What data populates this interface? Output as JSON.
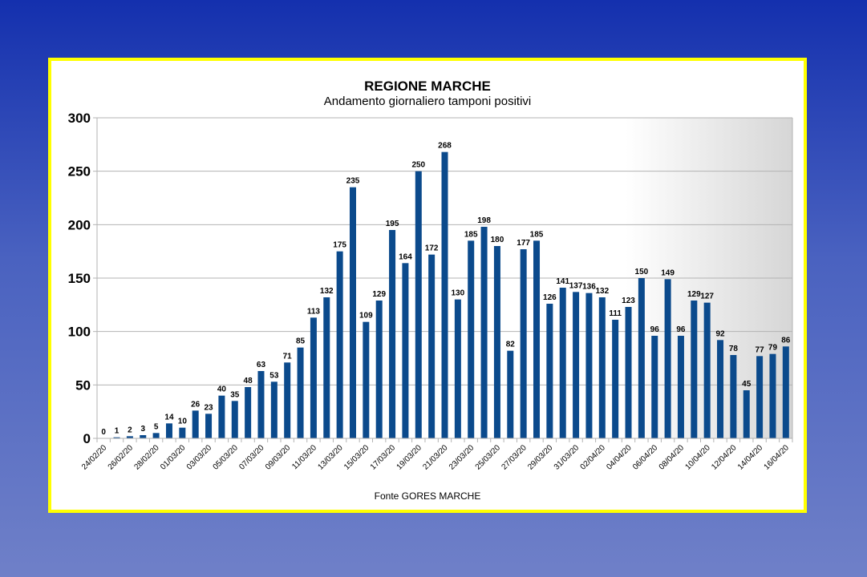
{
  "colors": {
    "background_top": "#1430ae",
    "background_bottom": "#6f80c8",
    "frame_border": "#ffff00",
    "bar": "#0b4a8c"
  },
  "chart_data": {
    "type": "bar",
    "title": "REGIONE MARCHE",
    "subtitle": "Andamento giornaliero tamponi positivi",
    "source": "Fonte GORES MARCHE",
    "xlabel": "",
    "ylabel": "",
    "ylim": [
      0,
      300
    ],
    "yticks": [
      0,
      50,
      100,
      150,
      200,
      250,
      300
    ],
    "grid": true,
    "legend": "none",
    "categories": [
      "24/02/20",
      "25/02/20",
      "26/02/20",
      "27/02/20",
      "28/02/20",
      "29/02/20",
      "01/03/20",
      "02/03/20",
      "03/03/20",
      "04/03/20",
      "05/03/20",
      "06/03/20",
      "07/03/20",
      "08/03/20",
      "09/03/20",
      "10/03/20",
      "11/03/20",
      "12/03/20",
      "13/03/20",
      "14/03/20",
      "15/03/20",
      "16/03/20",
      "17/03/20",
      "18/03/20",
      "19/03/20",
      "20/03/20",
      "21/03/20",
      "22/03/20",
      "23/03/20",
      "24/03/20",
      "25/03/20",
      "26/03/20",
      "27/03/20",
      "28/03/20",
      "29/03/20",
      "30/03/20",
      "31/03/20",
      "01/04/20",
      "02/04/20",
      "03/04/20",
      "04/04/20",
      "05/04/20",
      "06/04/20",
      "07/04/20",
      "08/04/20",
      "09/04/20",
      "10/04/20",
      "11/04/20",
      "12/04/20",
      "13/04/20",
      "14/04/20",
      "15/04/20",
      "16/04/20"
    ],
    "tick_labels": [
      "24/02/20",
      "26/02/20",
      "28/02/20",
      "01/03/20",
      "03/03/20",
      "05/03/20",
      "07/03/20",
      "09/03/20",
      "11/03/20",
      "13/03/20",
      "15/03/20",
      "17/03/20",
      "19/03/20",
      "21/03/20",
      "23/03/20",
      "25/03/20",
      "27/03/20",
      "29/03/20",
      "31/03/20",
      "02/04/20",
      "04/04/20",
      "06/04/20",
      "08/04/20",
      "10/04/20",
      "12/04/20",
      "14/04/20",
      "16/04/20"
    ],
    "values": [
      0,
      1,
      2,
      3,
      5,
      14,
      10,
      26,
      23,
      40,
      35,
      48,
      63,
      53,
      71,
      85,
      113,
      132,
      175,
      235,
      109,
      129,
      195,
      164,
      250,
      172,
      268,
      130,
      185,
      198,
      180,
      82,
      177,
      185,
      126,
      141,
      137,
      136,
      132,
      111,
      123,
      150,
      96,
      149,
      96,
      129,
      127,
      92,
      78,
      45,
      77,
      79,
      86
    ]
  }
}
